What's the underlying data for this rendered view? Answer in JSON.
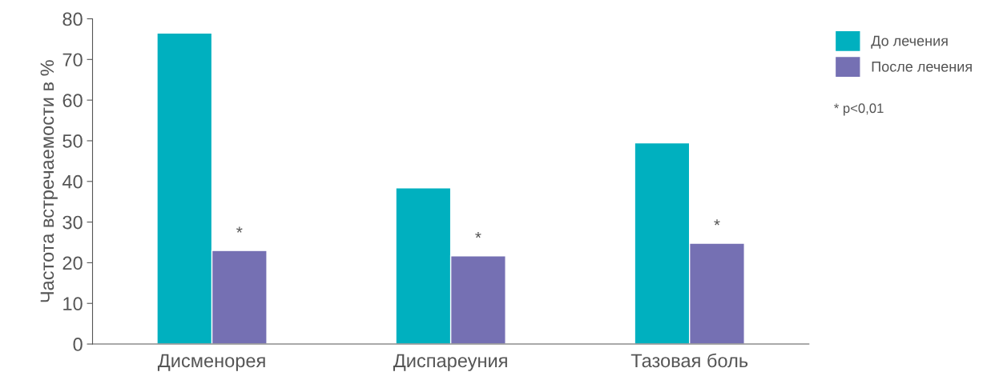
{
  "chart_data": {
    "type": "bar",
    "ylabel": "Частота встречаемости в %",
    "categories": [
      "Дисменорея",
      "Диспареуния",
      "Тазовая боль"
    ],
    "series": [
      {
        "name": "До лечения",
        "color": "#00b0bf",
        "values": [
          76.5,
          38.4,
          49.5
        ]
      },
      {
        "name": "После лечения",
        "color": "#7570b3",
        "values": [
          23.0,
          21.7,
          24.8
        ]
      }
    ],
    "ylim": [
      0,
      80
    ],
    "yticks": [
      0,
      10,
      20,
      30,
      40,
      50,
      60,
      70,
      80
    ],
    "grid": false,
    "legend": "top right",
    "annotations": [
      {
        "text": "*",
        "x": "Дисменорея",
        "y": 23.0
      },
      {
        "text": "*",
        "x": "Диспареуния",
        "y": 21.7
      },
      {
        "text": "*",
        "x": "Тазовая боль",
        "y": 24.8
      },
      "* p<0,01"
    ]
  }
}
